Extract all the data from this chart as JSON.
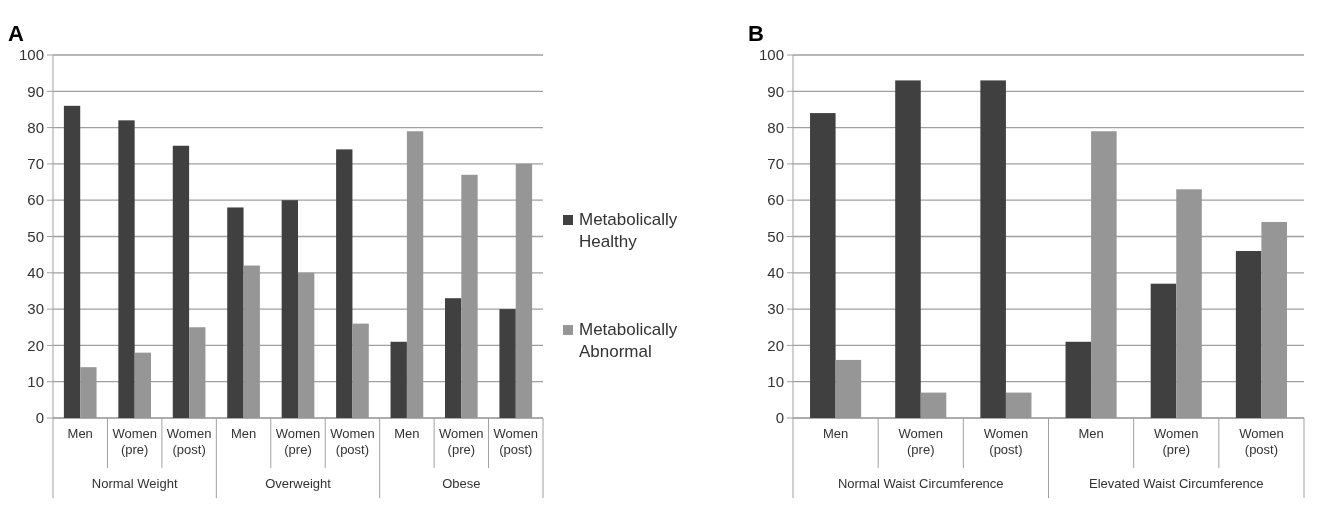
{
  "chart_data": [
    {
      "type": "bar",
      "title": "A",
      "categories": [
        "Men",
        "Women (pre)",
        "Women (post)",
        "Men",
        "Women (pre)",
        "Women (post)",
        "Men",
        "Women (pre)",
        "Women (post)"
      ],
      "series": [
        {
          "name": "Metabolically Healthy",
          "color": "#404040",
          "values": [
            86,
            82,
            75,
            58,
            60,
            74,
            21,
            33,
            30
          ]
        },
        {
          "name": "Metabolically Abnormal",
          "color": "#969696",
          "values": [
            14,
            18,
            25,
            42,
            40,
            26,
            79,
            67,
            70
          ]
        }
      ],
      "annotations": [
        "Normal Weight",
        "Overweight",
        "Obese"
      ],
      "ylim": [
        0,
        100
      ],
      "yticks": [
        0,
        10,
        20,
        30,
        40,
        50,
        60,
        70,
        80,
        90,
        100
      ],
      "grid": "y",
      "legend": "right"
    },
    {
      "type": "bar",
      "title": "B",
      "categories": [
        "Men",
        "Women (pre)",
        "Women (post)",
        "Men",
        "Women (pre)",
        "Women (post)"
      ],
      "series": [
        {
          "color": "#404040",
          "values": [
            84,
            93,
            93,
            21,
            37,
            46
          ]
        },
        {
          "color": "#969696",
          "values": [
            16,
            7,
            7,
            79,
            63,
            54
          ]
        }
      ],
      "annotations": [
        "Normal Waist Circumference",
        "Elevated Waist Circumference"
      ],
      "ylim": [
        0,
        100
      ],
      "yticks": [
        0,
        10,
        20,
        30,
        40,
        50,
        60,
        70,
        80,
        90,
        100
      ],
      "grid": "y"
    }
  ]
}
